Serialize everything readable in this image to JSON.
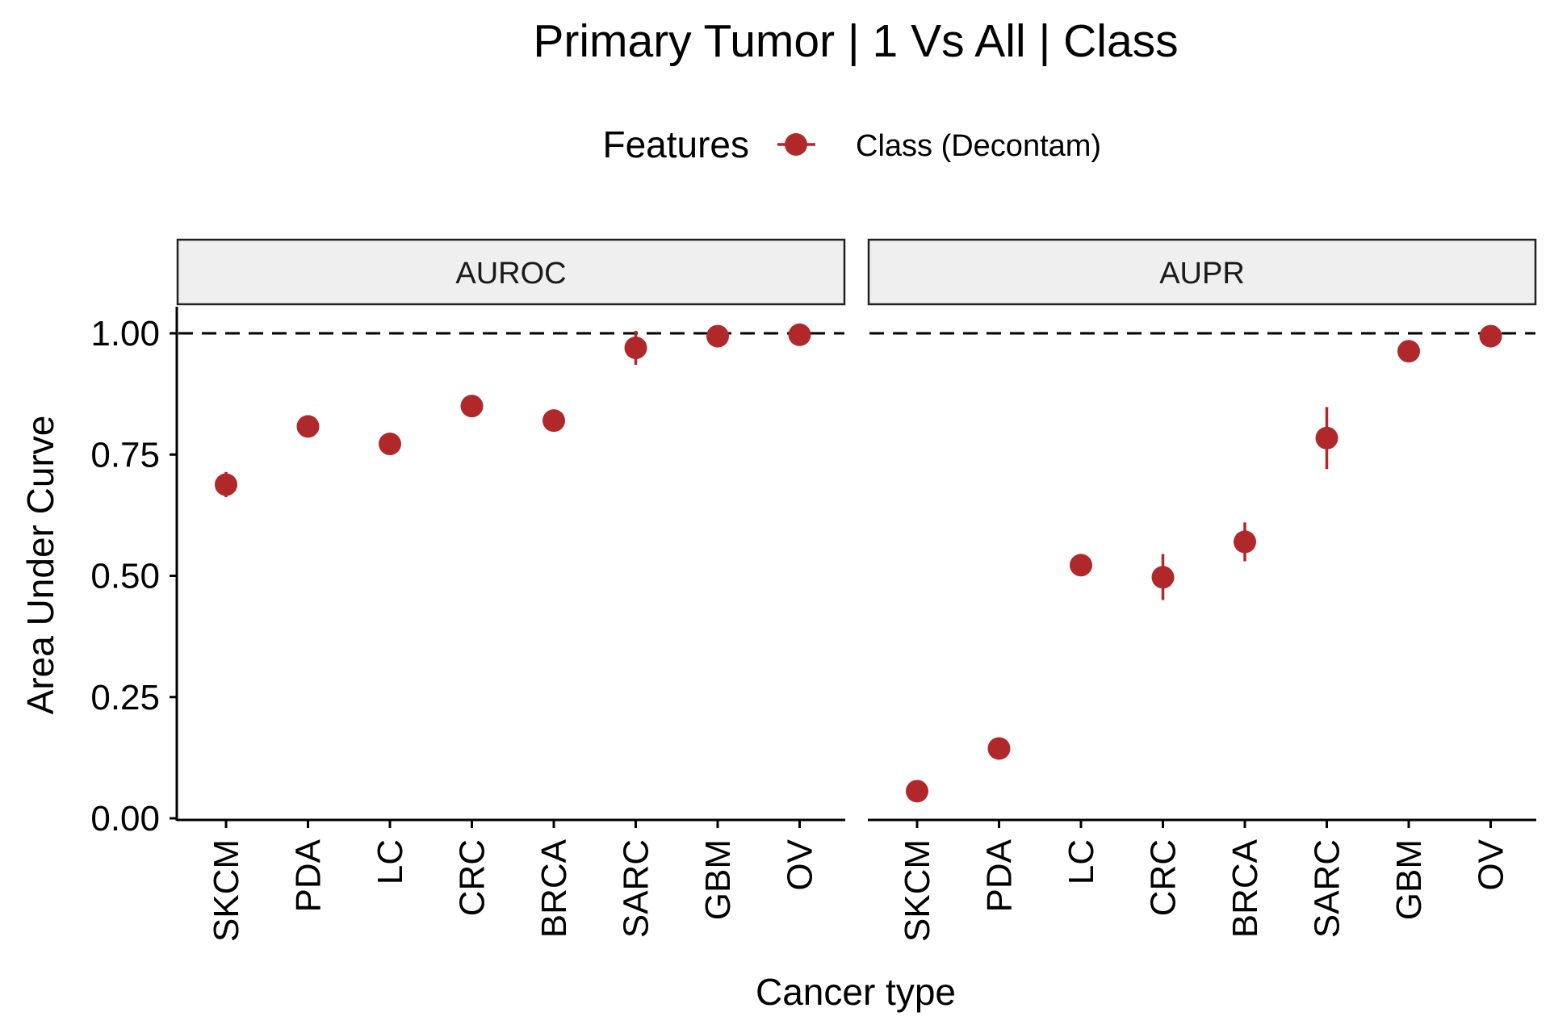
{
  "chart_data": {
    "type": "scatter",
    "title": "Primary Tumor | 1 Vs All | Class",
    "xlabel": "Cancer type",
    "ylabel": "Area Under Curve",
    "ylim": [
      0,
      1.05
    ],
    "yticks": [
      "0.00",
      "0.25",
      "0.50",
      "0.75",
      "1.00"
    ],
    "ytick_values": [
      0,
      0.25,
      0.5,
      0.75,
      1.0
    ],
    "reference_line": 1.0,
    "categories": [
      "SKCM",
      "PDA",
      "LC",
      "CRC",
      "BRCA",
      "SARC",
      "GBM",
      "OV"
    ],
    "legend": {
      "title": "Features",
      "position": "top",
      "entries": [
        {
          "label": "Class (Decontam)",
          "color": "#B0282A"
        }
      ]
    },
    "color": "#B0282A",
    "panels": [
      {
        "name": "AUROC",
        "values": [
          0.688,
          0.808,
          0.772,
          0.85,
          0.82,
          0.97,
          0.994,
          0.997
        ],
        "err_low": [
          0.662,
          0.808,
          0.772,
          0.85,
          0.82,
          0.935,
          0.994,
          0.997
        ],
        "err_high": [
          0.714,
          0.808,
          0.772,
          0.85,
          0.82,
          1.005,
          0.994,
          0.997
        ]
      },
      {
        "name": "AUPR",
        "values": [
          0.056,
          0.144,
          0.522,
          0.497,
          0.57,
          0.784,
          0.963,
          0.994
        ],
        "err_low": [
          0.056,
          0.144,
          0.522,
          0.45,
          0.53,
          0.72,
          0.963,
          0.994
        ],
        "err_high": [
          0.056,
          0.144,
          0.522,
          0.545,
          0.61,
          0.848,
          0.963,
          0.994
        ]
      }
    ]
  }
}
